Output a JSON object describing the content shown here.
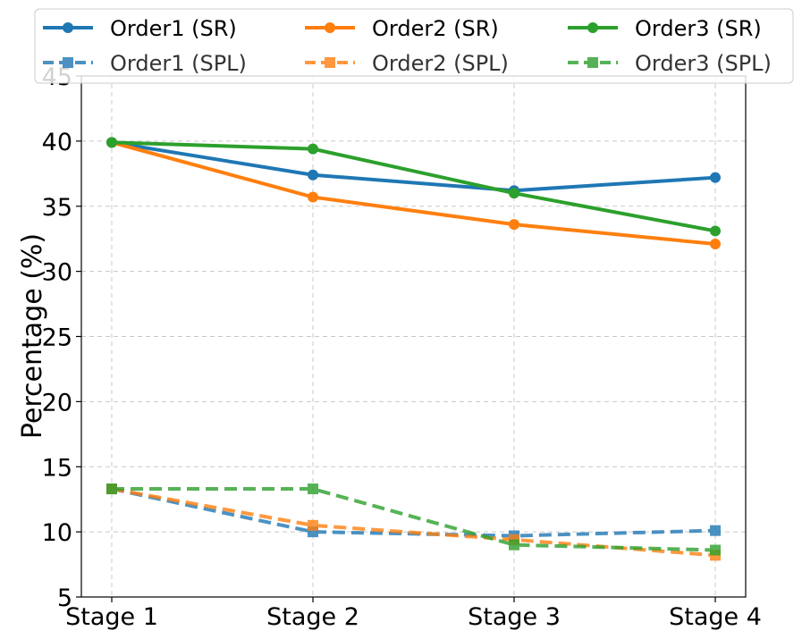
{
  "chart_data": {
    "type": "line",
    "title": "",
    "xlabel": "",
    "ylabel": "Percentage (%)",
    "categories": [
      "Stage 1",
      "Stage 2",
      "Stage 3",
      "Stage 4"
    ],
    "ylim": [
      5,
      45
    ],
    "yticks": [
      5,
      10,
      15,
      20,
      25,
      30,
      35,
      40,
      45
    ],
    "grid": true,
    "legend_position": "top",
    "series": [
      {
        "name": "Order1 (SR)",
        "values": [
          39.9,
          37.4,
          36.2,
          37.2
        ],
        "color": "#1f77b4",
        "style": "solid",
        "marker": "circle"
      },
      {
        "name": "Order2 (SR)",
        "values": [
          39.9,
          35.7,
          33.6,
          32.1
        ],
        "color": "#ff7f0e",
        "style": "solid",
        "marker": "circle"
      },
      {
        "name": "Order3 (SR)",
        "values": [
          39.9,
          39.4,
          36.0,
          33.1
        ],
        "color": "#2ca02c",
        "style": "solid",
        "marker": "circle"
      },
      {
        "name": "Order1 (SPL)",
        "values": [
          13.3,
          10.0,
          9.7,
          10.1
        ],
        "color": "#1f77b4",
        "style": "dashed",
        "marker": "square"
      },
      {
        "name": "Order2 (SPL)",
        "values": [
          13.3,
          10.5,
          9.4,
          8.2
        ],
        "color": "#ff7f0e",
        "style": "dashed",
        "marker": "square"
      },
      {
        "name": "Order3 (SPL)",
        "values": [
          13.3,
          13.3,
          9.0,
          8.6
        ],
        "color": "#2ca02c",
        "style": "dashed",
        "marker": "square"
      }
    ]
  }
}
